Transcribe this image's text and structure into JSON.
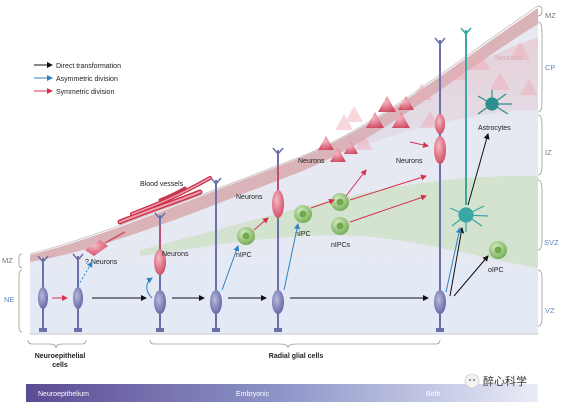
{
  "legend": {
    "direct": "Direct transformation",
    "asymmetric": "Asymmetric division",
    "symmetric": "Symmetric division"
  },
  "zones": {
    "mz_right": "MZ",
    "cp": "CP",
    "iz": "IZ",
    "svz": "SVZ",
    "vz": "VZ",
    "mz_left": "MZ",
    "ne": "NE"
  },
  "labels": {
    "neurons_q": "? Neurons",
    "blood_vessels": "Blood vessels",
    "neurons_1": "Neurons",
    "neurons_2": "Neurons",
    "neurons_3": "Neurons",
    "neurons_4": "Neurons",
    "neurons_ghost": "Neurons",
    "nipc_1": "nIPC",
    "nipc_2": "nIPC",
    "nipcs": "nIPCs",
    "astrocytes": "Astrocytes",
    "oipc": "oIPC",
    "neuroepithelial_cells": [
      "Neuroepithelial",
      "cells"
    ],
    "radial_glial_cells": "Radial glial cells"
  },
  "timeline": {
    "start": "Neuroepithelium",
    "middle": "Embryonic",
    "end": "Birth"
  },
  "watermark": "醉心科学",
  "colors": {
    "direct": "#111111",
    "asymmetric": "#2f82c5",
    "symmetric": "#d4314f",
    "radial_glia": "#7b80b4",
    "neuron": "#e06a7d",
    "ipc": "#8cc06b",
    "astro": "#3aa7a6"
  }
}
